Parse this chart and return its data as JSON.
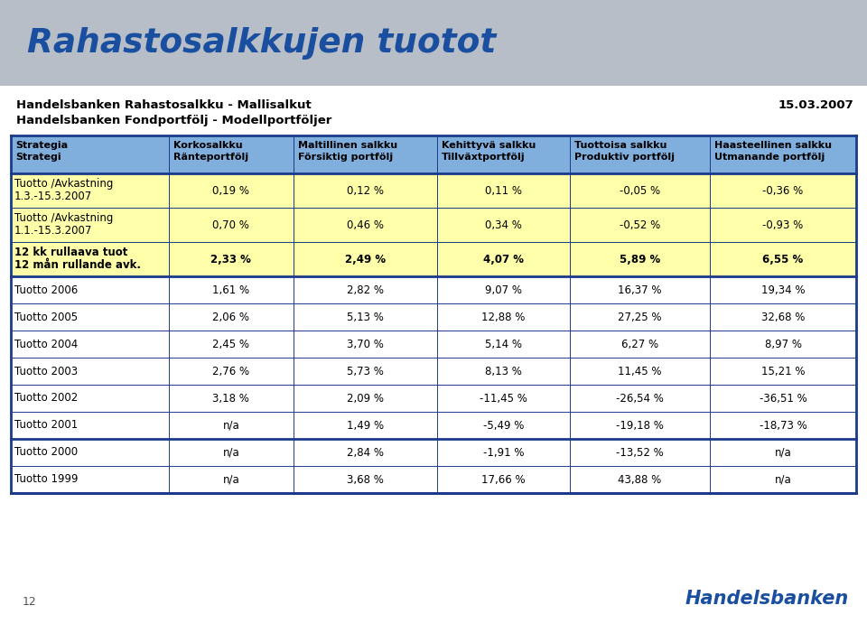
{
  "title": "Rahastosalkkujen tuotot",
  "title_color": "#1a4fa0",
  "title_bg": "#b8bec8",
  "subtitle1": "Handelsbanken Rahastosalkku - Mallisalkut",
  "subtitle2": "Handelsbanken Fondportfölj - Modellportföljer",
  "date": "15.03.2007",
  "col_headers_fi": [
    "Strategia",
    "Korkosalkku",
    "Maltillinen salkku",
    "Kehittyvä salkku",
    "Tuottoisa salkku",
    "Haasteellinen salkku"
  ],
  "col_headers_sv": [
    "Strategi",
    "Ränteportfölj",
    "Försiktig portfölj",
    "Tillväxtportfölj",
    "Produktiv portfölj",
    "Utmanande portfölj"
  ],
  "col_header_bg": "#80aedd",
  "rows": [
    {
      "label": "Tuotto /Avkastning\n1.3.-15.3.2007",
      "values": [
        "0,19 %",
        "0,12 %",
        "0,11 %",
        "-0,05 %",
        "-0,36 %"
      ],
      "bg": "#ffffaa",
      "bold": false
    },
    {
      "label": "Tuotto /Avkastning\n1.1.-15.3.2007",
      "values": [
        "0,70 %",
        "0,46 %",
        "0,34 %",
        "-0,52 %",
        "-0,93 %"
      ],
      "bg": "#ffffaa",
      "bold": false
    },
    {
      "label": "12 kk rullaava tuot\n12 mån rullande avk.",
      "values": [
        "2,33 %",
        "2,49 %",
        "4,07 %",
        "5,89 %",
        "6,55 %"
      ],
      "bg": "#ffffaa",
      "bold": true
    },
    {
      "label": "Tuotto 2006",
      "values": [
        "1,61 %",
        "2,82 %",
        "9,07 %",
        "16,37 %",
        "19,34 %"
      ],
      "bg": "#ffffff",
      "bold": false
    },
    {
      "label": "Tuotto 2005",
      "values": [
        "2,06 %",
        "5,13 %",
        "12,88 %",
        "27,25 %",
        "32,68 %"
      ],
      "bg": "#ffffff",
      "bold": false
    },
    {
      "label": "Tuotto 2004",
      "values": [
        "2,45 %",
        "3,70 %",
        "5,14 %",
        "6,27 %",
        "8,97 %"
      ],
      "bg": "#ffffff",
      "bold": false
    },
    {
      "label": "Tuotto 2003",
      "values": [
        "2,76 %",
        "5,73 %",
        "8,13 %",
        "11,45 %",
        "15,21 %"
      ],
      "bg": "#ffffff",
      "bold": false
    },
    {
      "label": "Tuotto 2002",
      "values": [
        "3,18 %",
        "2,09 %",
        "-11,45 %",
        "-26,54 %",
        "-36,51 %"
      ],
      "bg": "#ffffff",
      "bold": false
    },
    {
      "label": "Tuotto 2001",
      "values": [
        "n/a",
        "1,49 %",
        "-5,49 %",
        "-19,18 %",
        "-18,73 %"
      ],
      "bg": "#ffffff",
      "bold": false
    },
    {
      "label": "Tuotto 2000",
      "values": [
        "n/a",
        "2,84 %",
        "-1,91 %",
        "-13,52 %",
        "n/a"
      ],
      "bg": "#ffffff",
      "bold": false,
      "top_border_thick": true
    },
    {
      "label": "Tuotto 1999",
      "values": [
        "n/a",
        "3,68 %",
        "17,66 %",
        "43,88 %",
        "n/a"
      ],
      "bg": "#ffffff",
      "bold": false
    }
  ],
  "footer_page": "12",
  "footer_brand": "Handelsbanken",
  "footer_brand_color": "#1a4fa0",
  "border_color": "#1a3a8a",
  "text_color": "#000000"
}
